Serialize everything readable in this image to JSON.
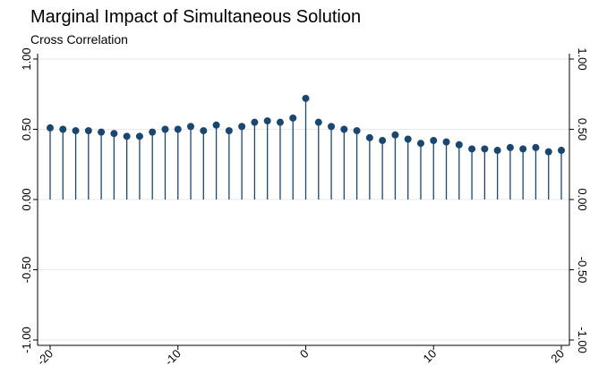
{
  "chart_data": {
    "type": "stem",
    "title": "Marginal Impact of Simultaneous Solution",
    "subtitle": "Cross Correlation",
    "x": [
      -20,
      -19,
      -18,
      -17,
      -16,
      -15,
      -14,
      -13,
      -12,
      -11,
      -10,
      -9,
      -8,
      -7,
      -6,
      -5,
      -4,
      -3,
      -2,
      -1,
      0,
      1,
      2,
      3,
      4,
      5,
      6,
      7,
      8,
      9,
      10,
      11,
      12,
      13,
      14,
      15,
      16,
      17,
      18,
      19,
      20
    ],
    "values": [
      0.51,
      0.5,
      0.49,
      0.49,
      0.48,
      0.47,
      0.45,
      0.45,
      0.48,
      0.5,
      0.5,
      0.52,
      0.49,
      0.53,
      0.49,
      0.52,
      0.55,
      0.56,
      0.55,
      0.58,
      0.72,
      0.55,
      0.52,
      0.5,
      0.49,
      0.44,
      0.42,
      0.46,
      0.43,
      0.4,
      0.42,
      0.41,
      0.39,
      0.36,
      0.36,
      0.35,
      0.37,
      0.36,
      0.37,
      0.34,
      0.35
    ],
    "color": "#1a476f",
    "xlim": [
      -20,
      20
    ],
    "xticks": [
      -20,
      -10,
      0,
      10,
      20
    ],
    "ylim": [
      -1,
      1
    ],
    "yticks": [
      {
        "value": -1,
        "label": "-1.00"
      },
      {
        "value": -0.5,
        "label": "-0.50"
      },
      {
        "value": 0,
        "label": "0.00"
      },
      {
        "value": 0.5,
        "label": "0.50"
      },
      {
        "value": 1,
        "label": "1.00"
      }
    ],
    "grid": true
  }
}
